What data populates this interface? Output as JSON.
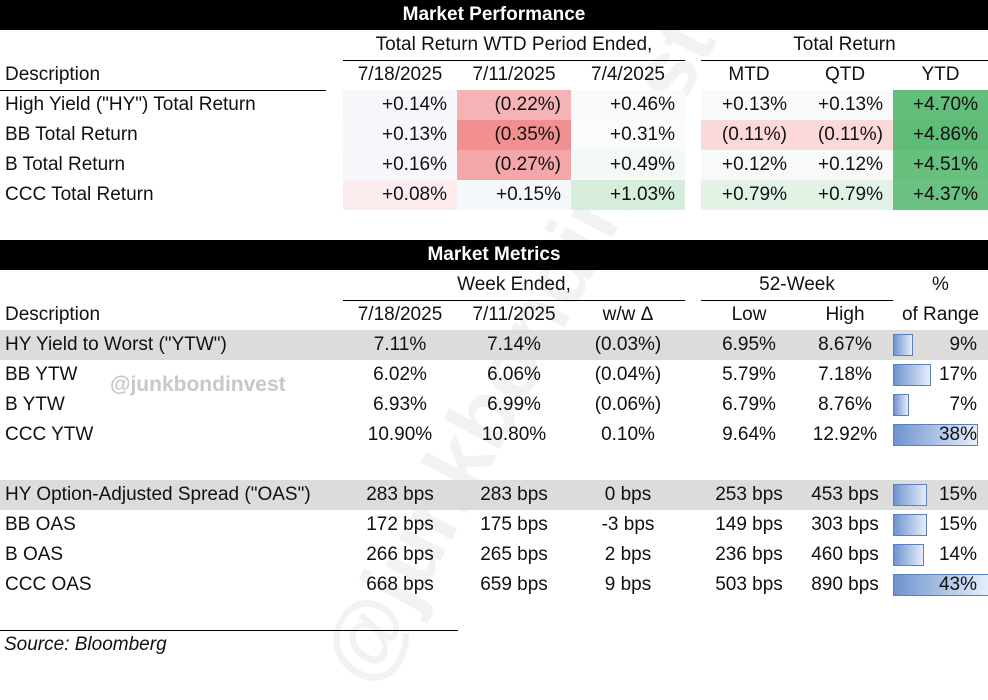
{
  "watermark": {
    "big": "@junkbondinvest",
    "small": "@junkbondinvest"
  },
  "performance": {
    "title": "Market Performance",
    "group1": "Total Return WTD Period Ended,",
    "group2": "Total Return",
    "headers": [
      "Description",
      "7/18/2025",
      "7/11/2025",
      "7/4/2025",
      "MTD",
      "QTD",
      "YTD"
    ],
    "rows": [
      {
        "desc": "High Yield (\"HY\") Total Return",
        "vals": [
          "+0.14%",
          "(0.22%)",
          "+0.46%",
          "+0.13%",
          "+0.13%",
          "+4.70%"
        ],
        "colors": [
          "#f6f7fb",
          "#f5b3b5",
          "#f8fbf8",
          "#f8fafa",
          "#f8fafa",
          "#63be7b"
        ]
      },
      {
        "desc": "BB Total Return",
        "vals": [
          "+0.13%",
          "(0.35%)",
          "+0.31%",
          "(0.11%)",
          "(0.11%)",
          "+4.86%"
        ],
        "colors": [
          "#f7f8fb",
          "#f18f91",
          "#fafbfc",
          "#fbd9da",
          "#fbd9da",
          "#5fbc78"
        ]
      },
      {
        "desc": "B Total Return",
        "vals": [
          "+0.16%",
          "(0.27%)",
          "+0.49%",
          "+0.12%",
          "+0.12%",
          "+4.51%"
        ],
        "colors": [
          "#f6f7fb",
          "#f4a6a8",
          "#f4f9f5",
          "#f8fafa",
          "#f8fafa",
          "#67c07e"
        ]
      },
      {
        "desc": "CCC Total Return",
        "vals": [
          "+0.08%",
          "+0.15%",
          "+1.03%",
          "+0.79%",
          "+0.79%",
          "+4.37%"
        ],
        "colors": [
          "#fcecee",
          "#f5f8fb",
          "#d5edda",
          "#e2f3e6",
          "#e2f3e6",
          "#6ac181"
        ]
      }
    ]
  },
  "metrics": {
    "title": "Market Metrics",
    "group1": "Week Ended,",
    "group2": "52-Week",
    "pct_label_top": "%",
    "headers": [
      "Description",
      "7/18/2025",
      "7/11/2025",
      "w/w Δ",
      "Low",
      "High",
      "of Range"
    ],
    "ytw_rows": [
      {
        "desc": "HY Yield to Worst (\"YTW\")",
        "vals": [
          "7.11%",
          "7.14%",
          "(0.03%)",
          "6.95%",
          "8.67%",
          "9%"
        ],
        "fill": 0.09,
        "shaded": true
      },
      {
        "desc": "BB YTW",
        "vals": [
          "6.02%",
          "6.06%",
          "(0.04%)",
          "5.79%",
          "7.18%",
          "17%"
        ],
        "fill": 0.17,
        "shaded": false
      },
      {
        "desc": "B YTW",
        "vals": [
          "6.93%",
          "6.99%",
          "(0.06%)",
          "6.79%",
          "8.76%",
          "7%"
        ],
        "fill": 0.07,
        "shaded": false
      },
      {
        "desc": "CCC YTW",
        "vals": [
          "10.90%",
          "10.80%",
          "0.10%",
          "9.64%",
          "12.92%",
          "38%"
        ],
        "fill": 0.38,
        "shaded": false
      }
    ],
    "oas_rows": [
      {
        "desc": "HY Option-Adjusted Spread (\"OAS\")",
        "vals": [
          "283 bps",
          "283 bps",
          "0 bps",
          "253 bps",
          "453 bps",
          "15%"
        ],
        "fill": 0.15,
        "shaded": true
      },
      {
        "desc": "BB OAS",
        "vals": [
          "172 bps",
          "175 bps",
          "-3 bps",
          "149 bps",
          "303 bps",
          "15%"
        ],
        "fill": 0.15,
        "shaded": false
      },
      {
        "desc": "B OAS",
        "vals": [
          "266 bps",
          "265 bps",
          "2 bps",
          "236 bps",
          "460 bps",
          "14%"
        ],
        "fill": 0.14,
        "shaded": false
      },
      {
        "desc": "CCC OAS",
        "vals": [
          "668 bps",
          "659 bps",
          "9 bps",
          "503 bps",
          "890 bps",
          "43%"
        ],
        "fill": 0.43,
        "shaded": false
      }
    ]
  },
  "source": "Source: Bloomberg"
}
